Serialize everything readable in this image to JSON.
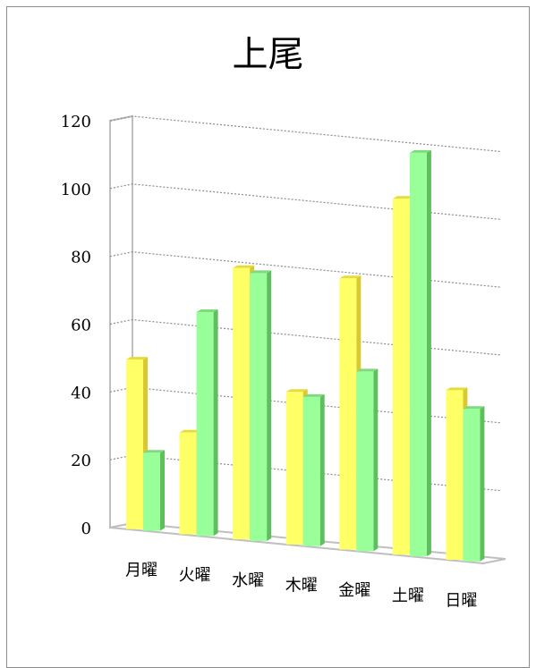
{
  "chart_data": {
    "type": "bar",
    "title": "上尾",
    "categories": [
      "月曜",
      "火曜",
      "水曜",
      "木曜",
      "金曜",
      "土曜",
      "日曜"
    ],
    "series": [
      {
        "values": [
          50,
          30,
          80,
          45,
          80,
          105,
          50
        ]
      },
      {
        "values": [
          23,
          66,
          79,
          44,
          53,
          119,
          45
        ]
      }
    ],
    "ylim": [
      0,
      120
    ],
    "yticks": [
      0,
      20,
      40,
      60,
      80,
      100,
      120
    ],
    "grid": true,
    "style": "3d-clustered-column",
    "colors": {
      "series1_front": "#ffff66",
      "series1_side": "#d9c830",
      "series1_top": "#e6dc3c",
      "series2_front": "#99ff99",
      "series2_side": "#5fbf5f",
      "series2_top": "#7fd97f",
      "axis": "#bfbfbf",
      "grid": "#8c8c8c"
    }
  }
}
